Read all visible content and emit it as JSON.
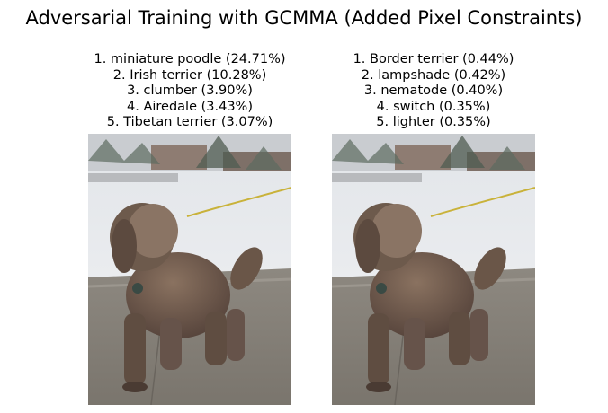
{
  "figure": {
    "title": "Adversarial Training with GCMMA (Added Pixel Constraints)"
  },
  "panels": [
    {
      "predictions": [
        "1. miniature poodle (24.71%)",
        "2. Irish terrier (10.28%)",
        "3. clumber (3.90%)",
        "4. Airedale (3.43%)",
        "5. Tibetan terrier (3.07%)"
      ]
    },
    {
      "predictions": [
        "1. Border terrier (0.44%)",
        "2. lampshade (0.42%)",
        "3. nematode (0.40%)",
        "4. switch (0.35%)",
        "5. lighter (0.35%)"
      ]
    }
  ],
  "colors": {
    "snow": "#eef0f2",
    "sidewalk": "#8f8a80",
    "dog_fur": "#6e5848",
    "leash": "#c9b23a"
  }
}
